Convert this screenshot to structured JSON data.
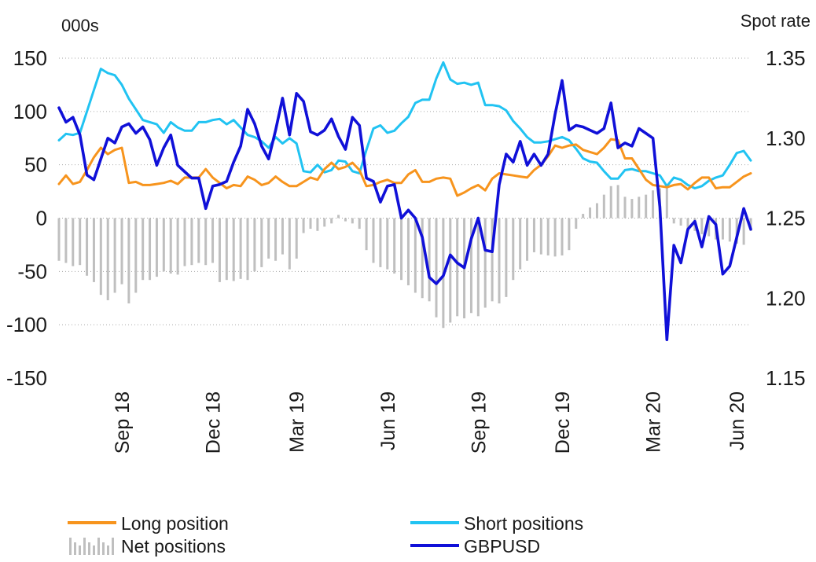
{
  "chart_data": {
    "type": "line",
    "y_left_unit": "000s",
    "y_right_unit": "Spot rate",
    "y_left_ticks": [
      "150",
      "100",
      "50",
      "0",
      "-50",
      "-100",
      "-150"
    ],
    "y_left_tick_values": [
      150,
      100,
      50,
      0,
      -50,
      -100,
      -150
    ],
    "y_left_range": [
      -150,
      150
    ],
    "y_right_ticks": [
      "1.35",
      "1.30",
      "1.25",
      "1.20",
      "1.15"
    ],
    "y_right_tick_values": [
      1.35,
      1.3,
      1.25,
      1.2,
      1.15
    ],
    "y_right_range": [
      1.15,
      1.35
    ],
    "x_range": [
      0,
      99
    ],
    "x_ticks": [
      {
        "label": "Sep 18",
        "x": 9
      },
      {
        "label": "Dec 18",
        "x": 22
      },
      {
        "label": "Mar 19",
        "x": 34
      },
      {
        "label": "Jun 19",
        "x": 47
      },
      {
        "label": "Sep 19",
        "x": 60
      },
      {
        "label": "Dec 19",
        "x": 72
      },
      {
        "label": "Mar 20",
        "x": 85
      },
      {
        "label": "Jun 20",
        "x": 97
      }
    ],
    "gridlines": true,
    "legend": [
      {
        "label": "Long position",
        "color": "#F7941D",
        "style": "line"
      },
      {
        "label": "Net positions",
        "color": "#BFBFBF",
        "style": "bars"
      },
      {
        "label": "Short positions",
        "color": "#21C3F2",
        "style": "line"
      },
      {
        "label": "GBPUSD",
        "color": "#1010D8",
        "style": "line"
      }
    ],
    "series": [
      {
        "name": "Long position",
        "axis": "left",
        "color": "#F7941D",
        "type": "line",
        "values": [
          32,
          40,
          32,
          34,
          45,
          57,
          66,
          60,
          64,
          66,
          33,
          34,
          31,
          31,
          32,
          33,
          35,
          32,
          38,
          38,
          38,
          46,
          38,
          33,
          28,
          31,
          30,
          39,
          36,
          31,
          33,
          39,
          34,
          30,
          30,
          34,
          38,
          36,
          46,
          52,
          46,
          48,
          52,
          45,
          30,
          31,
          34,
          36,
          33,
          33,
          41,
          45,
          34,
          34,
          37,
          38,
          37,
          21,
          24,
          28,
          31,
          26,
          37,
          42,
          41,
          40,
          39,
          38,
          45,
          50,
          58,
          68,
          66,
          68,
          69,
          64,
          62,
          60,
          66,
          74,
          73,
          56,
          56,
          46,
          36,
          31,
          30,
          29,
          31,
          32,
          27,
          33,
          38,
          38,
          28,
          29,
          29,
          34,
          39,
          42
        ]
      },
      {
        "name": "Short positions",
        "axis": "left",
        "color": "#21C3F2",
        "type": "line",
        "values": [
          73,
          79,
          78,
          80,
          100,
          120,
          140,
          136,
          134,
          125,
          112,
          102,
          92,
          90,
          88,
          80,
          90,
          85,
          82,
          82,
          90,
          90,
          92,
          93,
          88,
          92,
          85,
          78,
          76,
          72,
          66,
          76,
          70,
          75,
          70,
          44,
          43,
          50,
          43,
          45,
          54,
          53,
          44,
          42,
          64,
          84,
          87,
          80,
          82,
          89,
          95,
          108,
          111,
          111,
          131,
          146,
          130,
          126,
          127,
          125,
          127,
          106,
          106,
          105,
          101,
          91,
          84,
          76,
          71,
          71,
          72,
          74,
          76,
          73,
          65,
          56,
          53,
          52,
          44,
          37,
          37,
          45,
          46,
          44,
          44,
          42,
          40,
          30,
          38,
          36,
          31,
          28,
          30,
          35,
          38,
          40,
          50,
          61,
          63,
          54
        ]
      },
      {
        "name": "Net positions",
        "axis": "left",
        "color": "#BFBFBF",
        "type": "bar",
        "values": [
          -40,
          -42,
          -45,
          -44,
          -54,
          -60,
          -72,
          -77,
          -70,
          -62,
          -80,
          -70,
          -58,
          -58,
          -55,
          -50,
          -52,
          -53,
          -45,
          -44,
          -42,
          -44,
          -42,
          -60,
          -58,
          -59,
          -57,
          -58,
          -50,
          -46,
          -38,
          -40,
          -34,
          -48,
          -38,
          -14,
          -10,
          -12,
          -8,
          -5,
          3,
          -3,
          -5,
          -10,
          -30,
          -42,
          -46,
          -48,
          -52,
          -58,
          -63,
          -70,
          -75,
          -78,
          -93,
          -103,
          -98,
          -92,
          -94,
          -89,
          -92,
          -84,
          -78,
          -80,
          -74,
          -58,
          -48,
          -40,
          -32,
          -34,
          -35,
          -36,
          -35,
          -30,
          -10,
          4,
          10,
          14,
          22,
          30,
          31,
          20,
          18,
          20,
          22,
          26,
          28,
          30,
          -5,
          -7,
          -10,
          -12,
          -15,
          -17,
          -20,
          -20,
          -22,
          -24,
          -25,
          -12
        ]
      },
      {
        "name": "GBPUSD",
        "axis": "right",
        "color": "#1010D8",
        "type": "line",
        "values": [
          1.319,
          1.31,
          1.313,
          1.302,
          1.277,
          1.274,
          1.287,
          1.3,
          1.297,
          1.307,
          1.309,
          1.303,
          1.307,
          1.299,
          1.283,
          1.294,
          1.302,
          1.283,
          1.279,
          1.275,
          1.275,
          1.256,
          1.27,
          1.271,
          1.273,
          1.285,
          1.295,
          1.318,
          1.309,
          1.295,
          1.287,
          1.305,
          1.325,
          1.302,
          1.328,
          1.323,
          1.304,
          1.302,
          1.305,
          1.312,
          1.301,
          1.293,
          1.313,
          1.308,
          1.275,
          1.273,
          1.26,
          1.27,
          1.271,
          1.25,
          1.255,
          1.25,
          1.238,
          1.213,
          1.209,
          1.214,
          1.227,
          1.222,
          1.219,
          1.237,
          1.25,
          1.23,
          1.229,
          1.271,
          1.29,
          1.285,
          1.298,
          1.283,
          1.29,
          1.283,
          1.29,
          1.315,
          1.336,
          1.305,
          1.308,
          1.307,
          1.305,
          1.303,
          1.306,
          1.322,
          1.294,
          1.297,
          1.295,
          1.306,
          1.303,
          1.3,
          1.257,
          1.174,
          1.233,
          1.222,
          1.243,
          1.248,
          1.232,
          1.251,
          1.246,
          1.215,
          1.22,
          1.238,
          1.256,
          1.243
        ]
      }
    ]
  }
}
